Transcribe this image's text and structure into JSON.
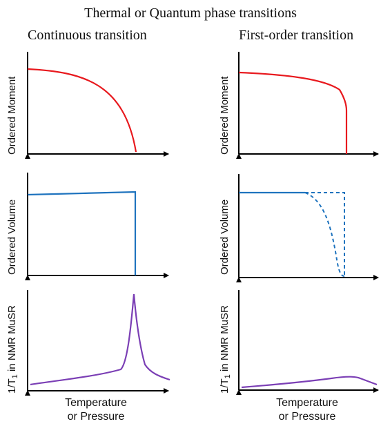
{
  "title": "Thermal or Quantum phase transitions",
  "columns": {
    "left": "Continuous transition",
    "right": "First-order transition"
  },
  "y_labels": {
    "moment": "Ordered Moment",
    "volume": "Ordered Volume",
    "relax_prefix": "1/T",
    "relax_sub": "1",
    "relax_suffix": " in NMR MuSR"
  },
  "x_label": {
    "line1": "Temperature",
    "line2": "or Pressure"
  },
  "colors": {
    "moment": "#e8191e",
    "volume": "#1e73be",
    "relax": "#7b3fb5",
    "axis": "#000000"
  }
}
